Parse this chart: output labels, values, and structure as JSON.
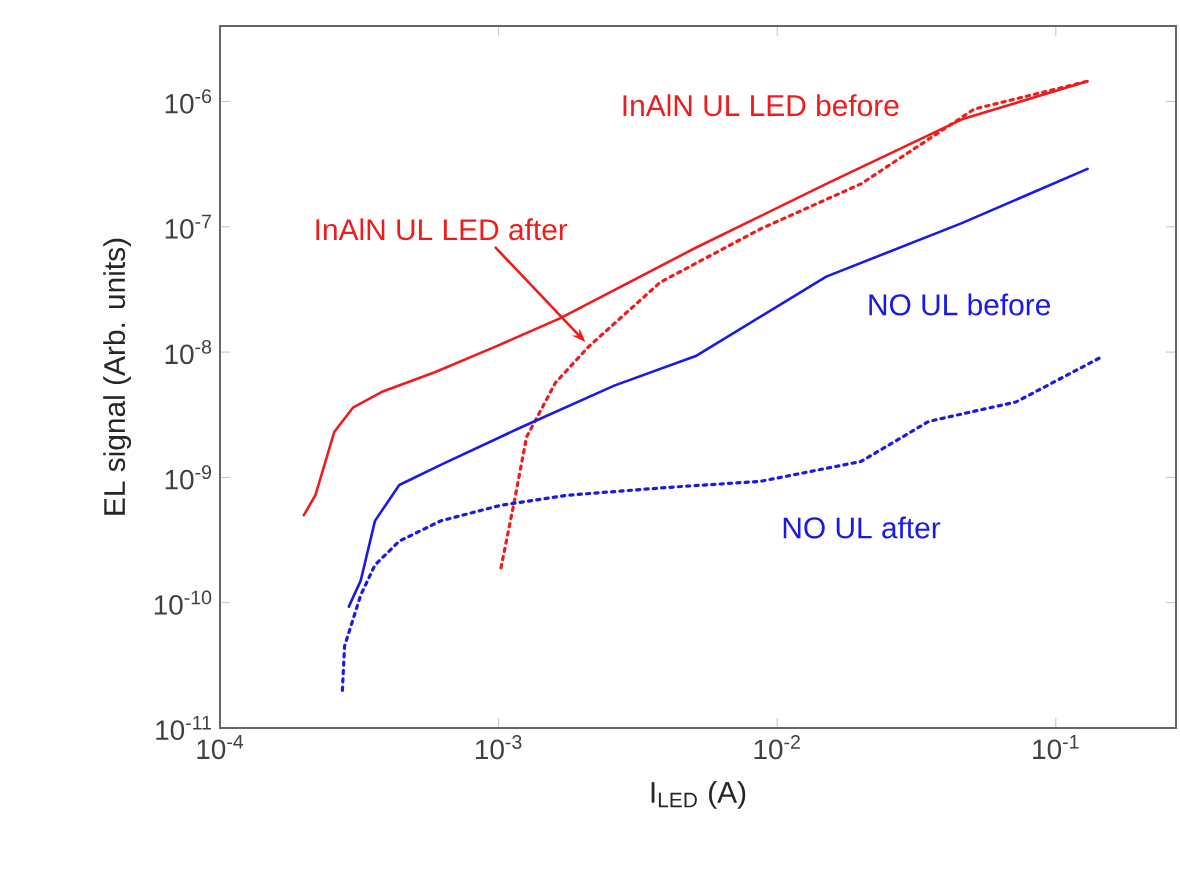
{
  "chart_data": {
    "type": "line",
    "xlabel": "I$_{LED}$ (A)",
    "ylabel": "EL signal (Arb. units)",
    "log": "xy",
    "grid": false,
    "legend": false,
    "xlim": [
      0.0001,
      0.27
    ],
    "ylim": [
      1e-11,
      4e-06
    ],
    "xticks": [
      {
        "value": 0.0001,
        "label": "10$^{-4}$"
      },
      {
        "value": 0.001,
        "label": "10$^{-3}$"
      },
      {
        "value": 0.01,
        "label": "10$^{-2}$"
      },
      {
        "value": 0.1,
        "label": "10$^{-1}$"
      }
    ],
    "yticks": [
      {
        "value": 1e-11,
        "label": "10$^{-11}$"
      },
      {
        "value": 1e-10,
        "label": "10$^{-10}$"
      },
      {
        "value": 1e-09,
        "label": "10$^{-9}$"
      },
      {
        "value": 1e-08,
        "label": "10$^{-8}$"
      },
      {
        "value": 1e-07,
        "label": "10$^{-7}$"
      },
      {
        "value": 1e-06,
        "label": "10$^{-6}$"
      }
    ],
    "series": [
      {
        "name": "InAlN UL LED before",
        "color": "#ee1c1c",
        "line_style": "solid",
        "x": [
          0.0002,
          0.00022,
          0.000257,
          0.0003,
          0.00038,
          0.00059,
          0.00097,
          0.00166,
          0.0051,
          0.015,
          0.046,
          0.13
        ],
        "values": [
          5e-10,
          7.2e-10,
          2.3e-09,
          3.6e-09,
          4.8e-09,
          6.9e-09,
          1.1e-08,
          1.86e-08,
          6.8e-08,
          2.2e-07,
          7.2e-07,
          1.45e-06
        ]
      },
      {
        "name": "InAlN UL LED after",
        "color": "#ee1c1c",
        "line_style": "dotted",
        "x": [
          0.00102,
          0.00114,
          0.00126,
          0.0016,
          0.0021,
          0.0038,
          0.0087,
          0.02,
          0.051,
          0.13
        ],
        "values": [
          1.9e-10,
          6.5e-10,
          2.1e-09,
          5.7e-09,
          1.1e-08,
          3.6e-08,
          9.6e-08,
          2.2e-07,
          8.7e-07,
          1.45e-06
        ]
      },
      {
        "name": "NO UL before",
        "color": "#1a1ae6",
        "line_style": "solid",
        "x": [
          0.00029,
          0.00032,
          0.00036,
          0.00044,
          0.00062,
          0.0012,
          0.0026,
          0.0051,
          0.015,
          0.046,
          0.13
        ],
        "values": [
          9.3e-11,
          1.5e-10,
          4.5e-10,
          8.7e-10,
          1.26e-09,
          2.5e-09,
          5.4e-09,
          9.3e-09,
          4e-08,
          1.07e-07,
          2.9e-07
        ]
      },
      {
        "name": "NO UL after",
        "color": "#1a1ae6",
        "line_style": "dotted",
        "x": [
          0.000275,
          0.00028,
          0.00032,
          0.00036,
          0.00044,
          0.00062,
          0.00102,
          0.00176,
          0.004,
          0.0087,
          0.02,
          0.035,
          0.072,
          0.148
        ],
        "values": [
          2e-11,
          4.5e-11,
          1.15e-10,
          2e-10,
          3.1e-10,
          4.5e-10,
          6e-10,
          7.2e-10,
          8.3e-10,
          9.3e-10,
          1.34e-09,
          2.8e-09,
          4e-09,
          9.3e-09
        ]
      }
    ]
  }
}
